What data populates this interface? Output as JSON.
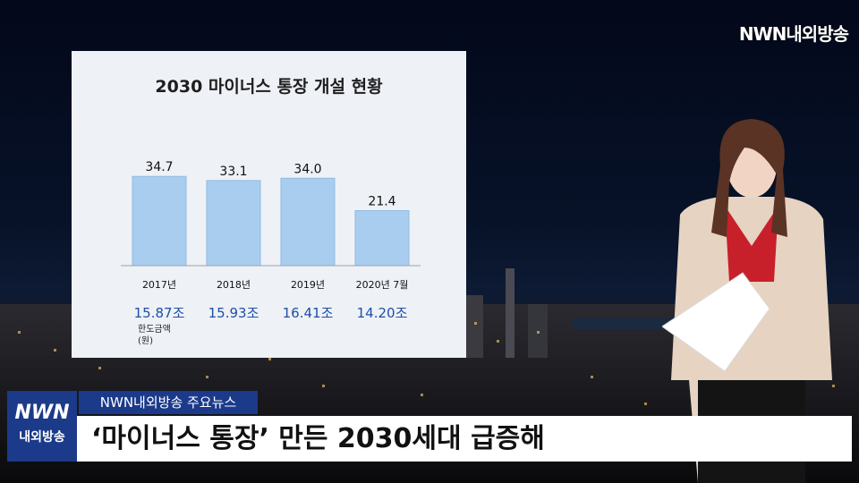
{
  "broadcaster_logo": "NWN내외방송",
  "badge": {
    "line1": "NWN",
    "line2": "내외방송"
  },
  "lower_third": {
    "label": "NWN내외방송 주요뉴스",
    "headline": "‘마이너스 통장’ 만든 2030세대 급증해"
  },
  "chart_data": {
    "type": "bar",
    "title": "2030 마이너스 통장 개설 현황",
    "categories": [
      "2017년",
      "2018년",
      "2019년",
      "2020년 7월"
    ],
    "values": [
      34.7,
      33.1,
      34.0,
      21.4
    ],
    "value_labels": [
      "34.7",
      "33.1",
      "34.0",
      "21.4"
    ],
    "limit_amounts": [
      "15.87조",
      "15.93조",
      "16.41조",
      "14.20조"
    ],
    "limit_label": [
      "한도금액",
      "(원)"
    ],
    "ylim": [
      0,
      40
    ],
    "colors": {
      "bar": "#a9cdef",
      "bar_stroke": "#8fbce6",
      "limit_text": "#1f4fa6"
    }
  }
}
